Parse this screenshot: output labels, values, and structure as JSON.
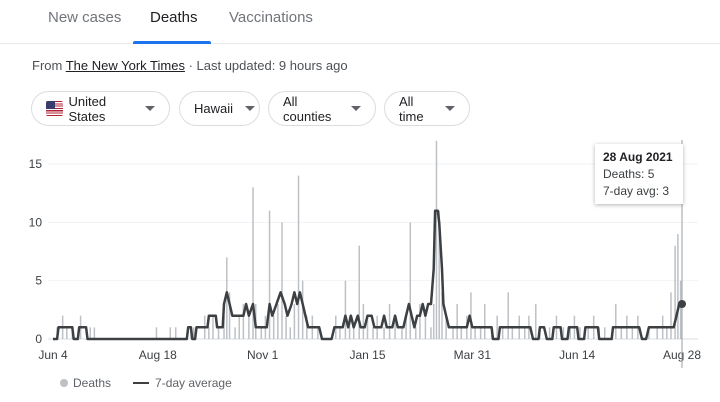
{
  "tabs": [
    {
      "label": "New cases"
    },
    {
      "label": "Deaths"
    },
    {
      "label": "Vaccinations"
    }
  ],
  "source": {
    "prefix": "From",
    "publisher": "The New York Times",
    "updated": "· Last updated: 9 hours ago"
  },
  "filters": {
    "country": "United States",
    "region": "Hawaii",
    "counties": "All counties",
    "time": "All time"
  },
  "tooltip": {
    "date": "28 Aug 2021",
    "deaths": "Deaths: 5",
    "avg": "7-day avg: 3"
  },
  "legend": {
    "bars": "Deaths",
    "line": "7-day average"
  },
  "colors": {
    "bars": "#bdc1c6",
    "line": "#3c4043",
    "accent": "#1a73e8"
  },
  "chart_data": {
    "type": "bar",
    "ylim": [
      0,
      17
    ],
    "yticks": [
      0,
      5,
      10,
      15
    ],
    "xticks": [
      "Jun 4",
      "Aug 18",
      "Nov 1",
      "Jan 15",
      "Mar 31",
      "Jun 14",
      "Aug 28"
    ],
    "series": [
      {
        "name": "Deaths",
        "points": [
          [
            3,
            1
          ],
          [
            7,
            2
          ],
          [
            10,
            1
          ],
          [
            14,
            1
          ],
          [
            20,
            2
          ],
          [
            27,
            1
          ],
          [
            30,
            1
          ],
          [
            75,
            1
          ],
          [
            85,
            1
          ],
          [
            89,
            1
          ],
          [
            100,
            1
          ],
          [
            102,
            1
          ],
          [
            110,
            2
          ],
          [
            113,
            1
          ],
          [
            116,
            2
          ],
          [
            120,
            1
          ],
          [
            124,
            2
          ],
          [
            126,
            7
          ],
          [
            128,
            4
          ],
          [
            132,
            1
          ],
          [
            135,
            2
          ],
          [
            138,
            3
          ],
          [
            142,
            2
          ],
          [
            145,
            13
          ],
          [
            147,
            3
          ],
          [
            151,
            1
          ],
          [
            154,
            2
          ],
          [
            157,
            11
          ],
          [
            160,
            2
          ],
          [
            163,
            3
          ],
          [
            166,
            10
          ],
          [
            169,
            2
          ],
          [
            172,
            1
          ],
          [
            175,
            3
          ],
          [
            178,
            14
          ],
          [
            181,
            5
          ],
          [
            184,
            2
          ],
          [
            188,
            2
          ],
          [
            192,
            1
          ],
          [
            205,
            2
          ],
          [
            208,
            1
          ],
          [
            212,
            5
          ],
          [
            215,
            2
          ],
          [
            218,
            1
          ],
          [
            222,
            8
          ],
          [
            225,
            3
          ],
          [
            228,
            2
          ],
          [
            232,
            1
          ],
          [
            235,
            2
          ],
          [
            240,
            1
          ],
          [
            244,
            3
          ],
          [
            248,
            2
          ],
          [
            253,
            1
          ],
          [
            256,
            2
          ],
          [
            259,
            10
          ],
          [
            263,
            1
          ],
          [
            266,
            3
          ],
          [
            270,
            2
          ],
          [
            274,
            1
          ],
          [
            276,
            3
          ],
          [
            278,
            17
          ],
          [
            280,
            11
          ],
          [
            282,
            4
          ],
          [
            285,
            2
          ],
          [
            290,
            1
          ],
          [
            293,
            3
          ],
          [
            296,
            1
          ],
          [
            300,
            2
          ],
          [
            303,
            4
          ],
          [
            306,
            1
          ],
          [
            310,
            1
          ],
          [
            313,
            3
          ],
          [
            318,
            1
          ],
          [
            322,
            2
          ],
          [
            326,
            1
          ],
          [
            330,
            4
          ],
          [
            333,
            1
          ],
          [
            338,
            2
          ],
          [
            342,
            1
          ],
          [
            345,
            2
          ],
          [
            350,
            3
          ],
          [
            353,
            1
          ],
          [
            360,
            1
          ],
          [
            365,
            2
          ],
          [
            370,
            1
          ],
          [
            375,
            1
          ],
          [
            378,
            2
          ],
          [
            382,
            1
          ],
          [
            388,
            1
          ],
          [
            392,
            2
          ],
          [
            396,
            1
          ],
          [
            400,
            1
          ],
          [
            408,
            3
          ],
          [
            412,
            1
          ],
          [
            416,
            2
          ],
          [
            420,
            1
          ],
          [
            424,
            2
          ],
          [
            432,
            1
          ],
          [
            438,
            1
          ],
          [
            442,
            2
          ],
          [
            445,
            1
          ],
          [
            448,
            4
          ],
          [
            451,
            8
          ],
          [
            453,
            9
          ],
          [
            455,
            5
          ]
        ]
      },
      {
        "name": "7-day average",
        "points": [
          [
            0,
            0
          ],
          [
            3,
            0
          ],
          [
            4,
            1
          ],
          [
            14,
            1
          ],
          [
            15,
            0
          ],
          [
            18,
            0
          ],
          [
            19,
            1
          ],
          [
            24,
            1
          ],
          [
            25,
            0
          ],
          [
            97,
            0
          ],
          [
            98,
            1
          ],
          [
            100,
            1
          ],
          [
            101,
            0
          ],
          [
            103,
            0
          ],
          [
            104,
            1
          ],
          [
            112,
            1
          ],
          [
            113,
            2
          ],
          [
            118,
            2
          ],
          [
            119,
            1
          ],
          [
            123,
            1
          ],
          [
            124,
            3
          ],
          [
            126,
            4
          ],
          [
            128,
            3
          ],
          [
            130,
            2
          ],
          [
            138,
            2
          ],
          [
            140,
            3
          ],
          [
            142,
            2
          ],
          [
            145,
            3
          ],
          [
            147,
            1
          ],
          [
            155,
            1
          ],
          [
            157,
            3
          ],
          [
            159,
            2
          ],
          [
            162,
            3
          ],
          [
            165,
            4
          ],
          [
            168,
            3
          ],
          [
            170,
            2
          ],
          [
            173,
            3
          ],
          [
            175,
            4
          ],
          [
            177,
            3
          ],
          [
            179,
            4
          ],
          [
            181,
            3
          ],
          [
            183,
            2
          ],
          [
            185,
            1
          ],
          [
            193,
            1
          ],
          [
            195,
            0
          ],
          [
            202,
            0
          ],
          [
            204,
            1
          ],
          [
            210,
            1
          ],
          [
            212,
            2
          ],
          [
            214,
            1
          ],
          [
            216,
            2
          ],
          [
            218,
            1
          ],
          [
            221,
            2
          ],
          [
            223,
            1
          ],
          [
            226,
            1
          ],
          [
            228,
            2
          ],
          [
            231,
            2
          ],
          [
            233,
            1
          ],
          [
            238,
            1
          ],
          [
            240,
            2
          ],
          [
            242,
            1
          ],
          [
            246,
            1
          ],
          [
            248,
            2
          ],
          [
            250,
            1
          ],
          [
            254,
            1
          ],
          [
            256,
            2
          ],
          [
            258,
            3
          ],
          [
            260,
            2
          ],
          [
            262,
            1
          ],
          [
            264,
            2
          ],
          [
            266,
            2
          ],
          [
            268,
            3
          ],
          [
            270,
            2
          ],
          [
            272,
            3
          ],
          [
            274,
            3
          ],
          [
            276,
            6
          ],
          [
            277,
            11
          ],
          [
            279,
            11
          ],
          [
            280,
            10
          ],
          [
            282,
            6
          ],
          [
            283,
            3
          ],
          [
            285,
            2
          ],
          [
            287,
            1
          ],
          [
            300,
            1
          ],
          [
            302,
            2
          ],
          [
            304,
            1
          ],
          [
            318,
            1
          ],
          [
            319,
            0
          ],
          [
            323,
            0
          ],
          [
            324,
            1
          ],
          [
            346,
            1
          ],
          [
            348,
            0
          ],
          [
            352,
            0
          ],
          [
            353,
            1
          ],
          [
            356,
            1
          ],
          [
            358,
            0
          ],
          [
            362,
            0
          ],
          [
            363,
            1
          ],
          [
            368,
            1
          ],
          [
            369,
            0
          ],
          [
            373,
            0
          ],
          [
            374,
            1
          ],
          [
            380,
            1
          ],
          [
            381,
            0
          ],
          [
            385,
            0
          ],
          [
            386,
            1
          ],
          [
            395,
            1
          ],
          [
            396,
            0
          ],
          [
            405,
            0
          ],
          [
            406,
            1
          ],
          [
            425,
            1
          ],
          [
            427,
            0
          ],
          [
            430,
            0
          ],
          [
            432,
            1
          ],
          [
            450,
            1
          ],
          [
            452,
            2
          ],
          [
            454,
            3
          ],
          [
            456,
            3
          ]
        ]
      }
    ]
  }
}
